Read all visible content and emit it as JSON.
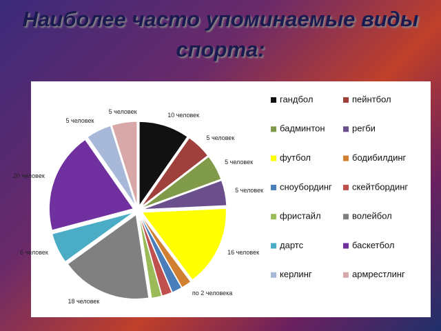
{
  "chart_data": {
    "type": "pie",
    "title": "Наиболее часто упоминаемые виды спорта:",
    "categories": [
      "гандбол",
      "пейнтбол",
      "бадминтон",
      "регби",
      "футбол",
      "бодибилдинг",
      "сноубординг",
      "скейтбординг",
      "фристайл",
      "волейбол",
      "дартс",
      "баскетбол",
      "керлинг",
      "армрестлинг"
    ],
    "values": [
      10,
      5,
      5,
      5,
      16,
      2,
      2,
      2,
      2,
      18,
      6,
      20,
      5,
      5
    ],
    "value_labels": [
      "10 человек",
      "5 человек",
      "5 человек",
      "5 человек",
      "16 человек",
      "по 2 человека",
      null,
      null,
      null,
      "18 человек",
      "6 человек",
      "20 человек",
      "5 человек",
      "5 человек"
    ],
    "colors": [
      "#111111",
      "#a0403c",
      "#7f9a48",
      "#6a4f8c",
      "#ffff00",
      "#d08030",
      "#4a7ebb",
      "#c0504d",
      "#9bbb59",
      "#808080",
      "#4bacc6",
      "#7030a0",
      "#a8b8d8",
      "#d8a8a8"
    ],
    "legend": "right"
  }
}
